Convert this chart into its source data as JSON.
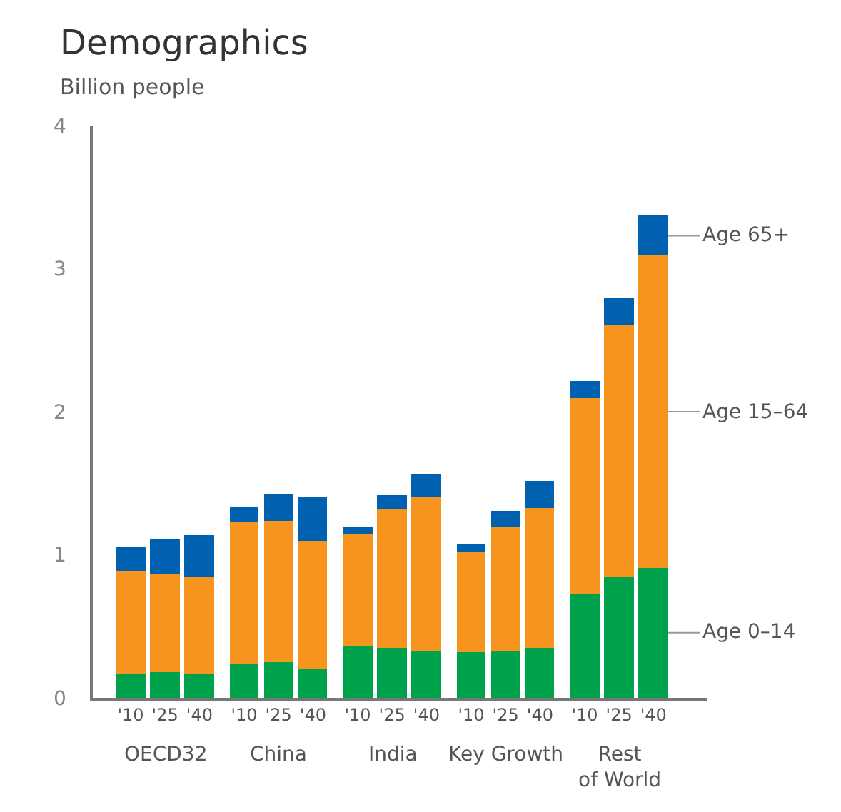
{
  "chart_data": {
    "type": "bar",
    "title": "Demographics",
    "subtitle": "Billion people",
    "categories": [
      "'10",
      "'25",
      "'40",
      "'10",
      "'25",
      "'40",
      "'10",
      "'25",
      "'40",
      "'10",
      "'25",
      "'40",
      "'10",
      "'25",
      "'40"
    ],
    "annotations": [
      "OECD32",
      "China",
      "India",
      "Key Growth",
      "Rest\nof World"
    ],
    "stacked": true,
    "ylim": [
      0,
      4
    ],
    "yticks": [
      0,
      1,
      2,
      3,
      4
    ],
    "legend": false,
    "series": [
      {
        "name": "Age 0–14",
        "color": "#00a14b",
        "values": [
          0.17,
          0.18,
          0.17,
          0.24,
          0.25,
          0.2,
          0.36,
          0.35,
          0.33,
          0.32,
          0.33,
          0.35,
          0.73,
          0.85,
          0.91
        ]
      },
      {
        "name": "Age 15–64",
        "color": "#f7941d",
        "values": [
          0.72,
          0.69,
          0.68,
          0.99,
          0.99,
          0.9,
          0.79,
          0.97,
          1.08,
          0.7,
          0.87,
          0.98,
          1.36,
          1.75,
          2.18
        ]
      },
      {
        "name": "Age 65+",
        "color": "#0061b0",
        "values": [
          0.17,
          0.24,
          0.29,
          0.11,
          0.19,
          0.31,
          0.05,
          0.1,
          0.16,
          0.06,
          0.11,
          0.19,
          0.12,
          0.19,
          0.28
        ]
      }
    ]
  }
}
